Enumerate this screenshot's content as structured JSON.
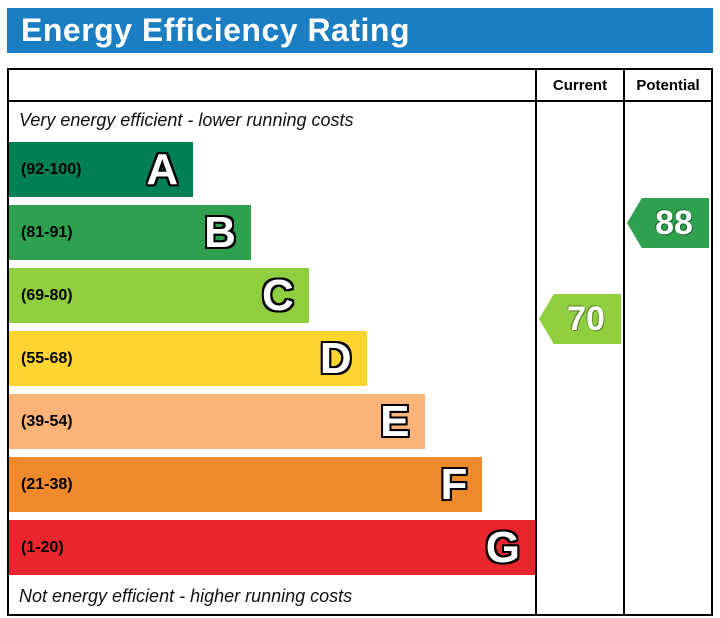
{
  "title": "Energy Efficiency Rating",
  "header": {
    "current": "Current",
    "potential": "Potential"
  },
  "captions": {
    "top": "Very energy efficient - lower running costs",
    "bottom": "Not energy efficient - higher running costs"
  },
  "chart_data": {
    "type": "bar",
    "title": "Energy Efficiency Rating",
    "bands": [
      {
        "letter": "A",
        "range": "(92-100)",
        "color": "#008054",
        "width_pct": 35
      },
      {
        "letter": "B",
        "range": "(81-91)",
        "color": "#2ea04e",
        "width_pct": 46
      },
      {
        "letter": "C",
        "range": "(69-80)",
        "color": "#8ece3f",
        "width_pct": 57
      },
      {
        "letter": "D",
        "range": "(55-68)",
        "color": "#fed530",
        "width_pct": 68
      },
      {
        "letter": "E",
        "range": "(39-54)",
        "color": "#fbb377",
        "width_pct": 79
      },
      {
        "letter": "F",
        "range": "(21-38)",
        "color": "#ef8a2c",
        "width_pct": 90
      },
      {
        "letter": "G",
        "range": "(1-20)",
        "color": "#e9262e",
        "width_pct": 100
      }
    ],
    "current": {
      "value": 70,
      "band": "C",
      "color": "#8ece3f"
    },
    "potential": {
      "value": 88,
      "band": "B",
      "color": "#2ea04e"
    }
  }
}
